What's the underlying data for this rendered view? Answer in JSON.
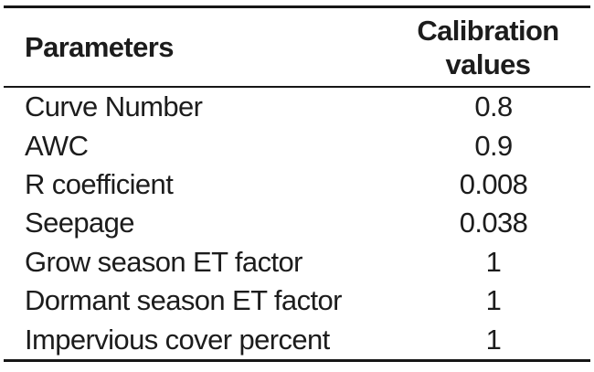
{
  "page": {
    "background_color": "#ffffff",
    "text_color": "#1c1c1c",
    "rule_color": "#161616"
  },
  "table": {
    "header": {
      "parameters_label": "Parameters",
      "calibration_values_label": "Calibration values"
    },
    "rows": [
      {
        "label": "Curve Number",
        "value": "0.8"
      },
      {
        "label": "AWC",
        "value": "0.9"
      },
      {
        "label": "R coefficient",
        "value": "0.008"
      },
      {
        "label": "Seepage",
        "value": "0.038"
      },
      {
        "label": "Grow season ET factor",
        "value": "1"
      },
      {
        "label": "Dormant season ET factor",
        "value": "1"
      },
      {
        "label": "Impervious cover percent",
        "value": "1"
      }
    ]
  },
  "chart_data": {
    "type": "table",
    "columns": [
      "Parameters",
      "Calibration values"
    ],
    "rows": [
      [
        "Curve Number",
        "0.8"
      ],
      [
        "AWC",
        "0.9"
      ],
      [
        "R coefficient",
        "0.008"
      ],
      [
        "Seepage",
        "0.038"
      ],
      [
        "Grow season ET factor",
        "1"
      ],
      [
        "Dormant season ET factor",
        "1"
      ],
      [
        "Impervious cover percent",
        "1"
      ]
    ]
  }
}
